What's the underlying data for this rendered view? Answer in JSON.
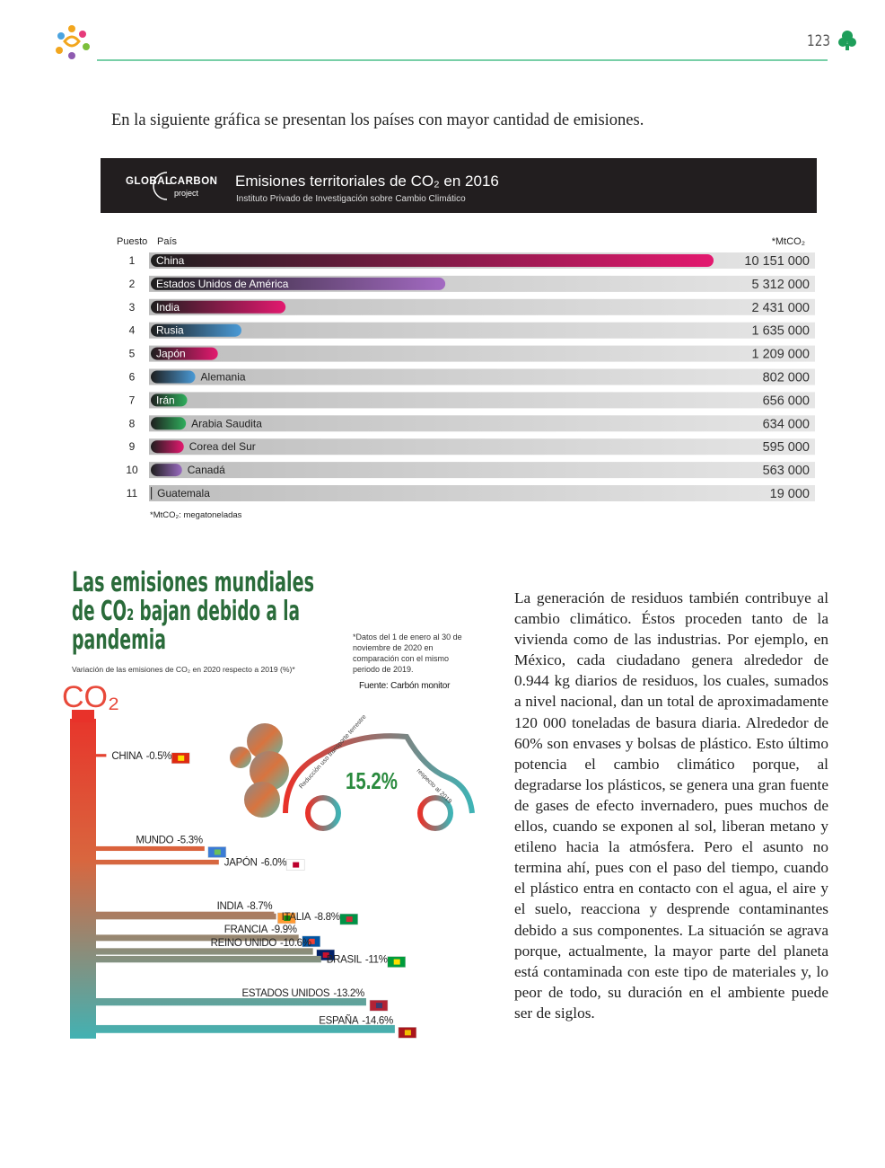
{
  "header": {
    "page_number": "123"
  },
  "intro": "En la siguiente gráfica se presentan los países con mayor cantidad de emisiones.",
  "chart_data": [
    {
      "type": "bar",
      "brand": [
        "GLOBAL",
        "CARBON",
        "project"
      ],
      "title": "Emisiones territoriales de CO₂ en 2016",
      "subtitle": "Instituto Privado de Investigación sobre Cambio Climático",
      "column_labels": {
        "rank": "Puesto",
        "country": "País",
        "unit": "*MtCO₂"
      },
      "ranks": [
        1,
        2,
        3,
        4,
        5,
        6,
        7,
        8,
        9,
        10,
        11
      ],
      "categories": [
        "China",
        "Estados Unidos de América",
        "India",
        "Rusia",
        "Japón",
        "Alemania",
        "Irán",
        "Arabia Saudita",
        "Corea del Sur",
        "Canadá",
        "Guatemala"
      ],
      "values": [
        10151000,
        5312000,
        2431000,
        1635000,
        1209000,
        802000,
        656000,
        634000,
        595000,
        563000,
        19000
      ],
      "value_labels": [
        "10 151 000",
        "5 312 000",
        "2 431 000",
        "1 635 000",
        "1 209 000",
        "802 000",
        "656 000",
        "634 000",
        "595 000",
        "563 000",
        "19 000"
      ],
      "colors": [
        "#e3196f",
        "#a36ac2",
        "#e3196f",
        "#4a9ad6",
        "#e3196f",
        "#4a9ad6",
        "#2fae5c",
        "#2fae5c",
        "#e3196f",
        "#9a6bc0",
        "#444444"
      ],
      "footnote": "*MtCO₂: megatoneladas"
    },
    {
      "type": "bar",
      "title": [
        "Las emisiones mundiales",
        "de CO₂ bajan debido a la",
        "pandemia"
      ],
      "subtitle": "Variación de las emisiones de CO₂ en 2020 respecto a 2019 (%)*",
      "note": "*Datos del 1 de enero al 30 de noviembre de 2020 en comparación con el mismo periodo de 2019.",
      "source": "Fuente: Carbón monitor",
      "co2_label": "CO₂",
      "categories": [
        "CHINA",
        "MUNDO",
        "JAPÓN",
        "INDIA",
        "ITALIA",
        "FRANCIA",
        "REINO UNIDO",
        "BRASIL",
        "ESTADOS UNIDOS",
        "ESPAÑA"
      ],
      "values": [
        -0.5,
        -5.3,
        -6.0,
        -8.7,
        -8.8,
        -9.9,
        -10.6,
        -11,
        -13.2,
        -14.6
      ],
      "value_labels": [
        "-0.5%",
        "-5.3%",
        "-6.0%",
        "-8.7%",
        "-8.8%",
        "-9.9%",
        "-10.6%",
        "-11%",
        "-13.2%",
        "-14.6%"
      ],
      "highlight": {
        "value": 15.2,
        "label": "15.2%",
        "caption_top": "Reducción uso transporte terrestre",
        "caption_right": "respecto al 2019"
      }
    }
  ],
  "body_text": "La generación de residuos también contribuye al cambio climático. Éstos proceden tanto de la vivienda como de las industrias. Por ejemplo, en México, cada ciudadano genera alrededor de 0.944 kg diarios de residuos, los cuales, sumados a nivel nacional, dan un total de aproximadamente 120 000 toneladas de basura diaria. Alrededor de 60% son envases y bolsas de plástico. Esto último potencia el cambio climático porque, al degradarse los plásticos, se genera una gran fuente de gases de efecto invernadero, pues muchos de ellos, cuando se exponen al sol, liberan metano y etileno hacia la atmósfera. Pero el asunto no termina ahí, pues con el paso del tiempo, cuando el plástico entra en contacto con el agua, el aire y el suelo, reacciona y desprende contaminantes debido a sus componentes. La situación se agrava porque, actualmente, la mayor parte del planeta está contaminada con este tipo de materiales y, lo peor de todo, su duración en el ambiente puede ser de siglos."
}
